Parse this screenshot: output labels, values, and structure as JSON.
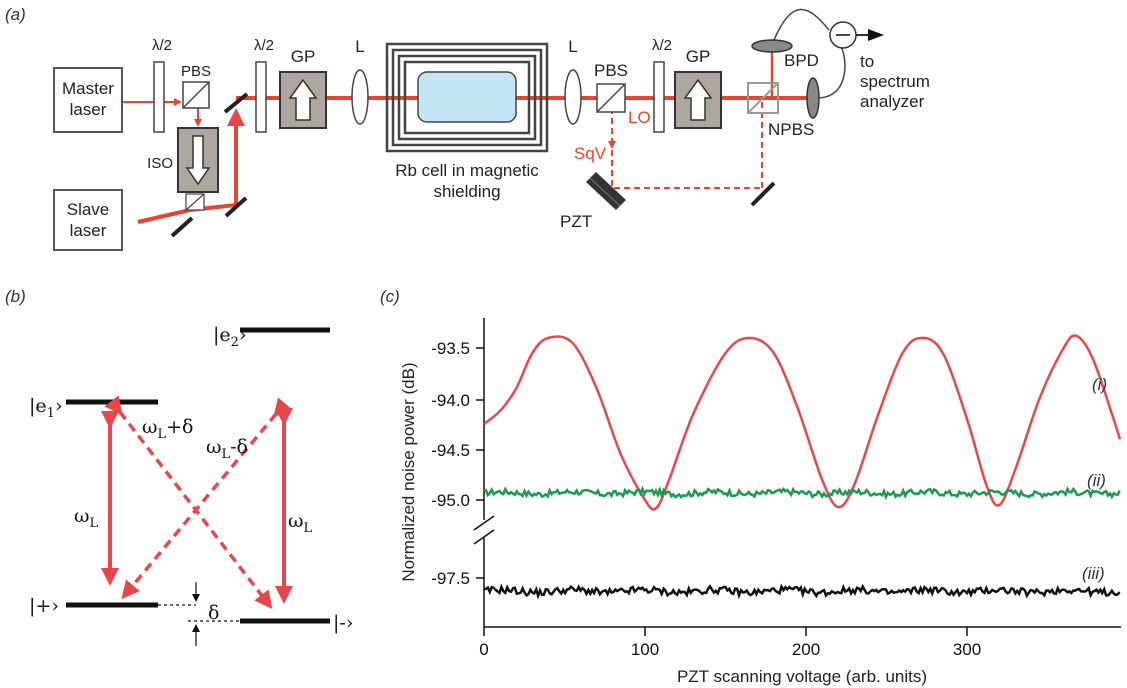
{
  "panels": {
    "a": "(a)",
    "b": "(b)",
    "c": "(c)"
  },
  "setup": {
    "master_laser": [
      "Master",
      "laser"
    ],
    "slave_laser": [
      "Slave",
      "laser"
    ],
    "half_wave": "λ/2",
    "pbs": "PBS",
    "iso": "ISO",
    "gp": "GP",
    "lens": "L",
    "rb_cell": [
      "Rb cell in magnetic",
      "shielding"
    ],
    "lo": "LO",
    "sqv": "SqV",
    "pzt": "PZT",
    "bpd": "BPD",
    "npbs": "NPBS",
    "to_spectrum": [
      "to",
      "spectrum",
      "analyzer"
    ]
  },
  "levels": {
    "e2": "|e",
    "e2_sub": "2",
    "e1": "|e",
    "e1_sub": "1",
    "plus": "|+›",
    "minus": "|-›",
    "ket_end": "›",
    "omega_L": "ω",
    "omega_L_sub": "L",
    "omega_plus_delta": "+δ",
    "omega_minus_delta": "-δ",
    "delta": "δ"
  },
  "chart_data": {
    "type": "line",
    "xlabel": "PZT scanning voltage (arb. units)",
    "ylabel": "Normalized noise power (dB)",
    "xlim": [
      0,
      395
    ],
    "x_ticks": [
      "0",
      "100",
      "200",
      "300"
    ],
    "y_ticks": [
      "-93.5",
      "-94.0",
      "-94.5",
      "-95.0",
      "-97.5"
    ],
    "y_axis_break": true,
    "series": [
      {
        "name": "(i)",
        "color": "#e8464b",
        "points": [
          [
            0,
            -94.25
          ],
          [
            10,
            -94.12
          ],
          [
            20,
            -93.9
          ],
          [
            30,
            -93.55
          ],
          [
            40,
            -93.4
          ],
          [
            55,
            -93.45
          ],
          [
            70,
            -93.9
          ],
          [
            85,
            -94.55
          ],
          [
            100,
            -95.0
          ],
          [
            107,
            -95.08
          ],
          [
            115,
            -94.8
          ],
          [
            130,
            -94.15
          ],
          [
            150,
            -93.55
          ],
          [
            165,
            -93.4
          ],
          [
            180,
            -93.55
          ],
          [
            195,
            -94.1
          ],
          [
            210,
            -94.8
          ],
          [
            220,
            -95.07
          ],
          [
            230,
            -94.85
          ],
          [
            245,
            -94.15
          ],
          [
            260,
            -93.55
          ],
          [
            272,
            -93.4
          ],
          [
            285,
            -93.55
          ],
          [
            300,
            -94.2
          ],
          [
            312,
            -94.85
          ],
          [
            320,
            -95.05
          ],
          [
            330,
            -94.7
          ],
          [
            345,
            -94.0
          ],
          [
            360,
            -93.5
          ],
          [
            368,
            -93.38
          ],
          [
            378,
            -93.6
          ],
          [
            390,
            -94.15
          ],
          [
            395,
            -94.4
          ]
        ]
      },
      {
        "name": "(ii)",
        "color": "#1e9a4e",
        "level": -94.93
      },
      {
        "name": "(iii)",
        "color": "#111111",
        "level": -97.63
      }
    ]
  }
}
